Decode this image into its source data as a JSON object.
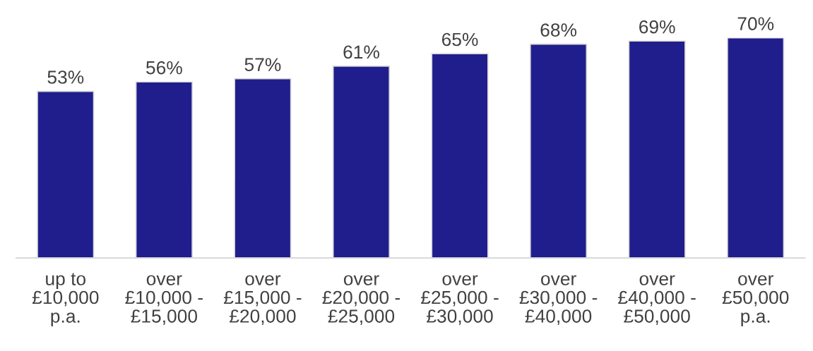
{
  "chart_data": {
    "type": "bar",
    "categories": [
      "up to\n£10,000\np.a.",
      "over\n£10,000 -\n£15,000",
      "over\n£15,000 -\n£20,000",
      "over\n£20,000 -\n£25,000",
      "over\n£25,000 -\n£30,000",
      "over\n£30,000 -\n£40,000",
      "over\n£40,000 -\n£50,000",
      "over\n£50,000\np.a."
    ],
    "values": [
      53,
      56,
      57,
      61,
      65,
      68,
      69,
      70
    ],
    "value_labels": [
      "53%",
      "56%",
      "57%",
      "61%",
      "65%",
      "68%",
      "69%",
      "70%"
    ],
    "color": "#201e8c",
    "grid": false,
    "legend": false,
    "tick_labels": "x"
  }
}
